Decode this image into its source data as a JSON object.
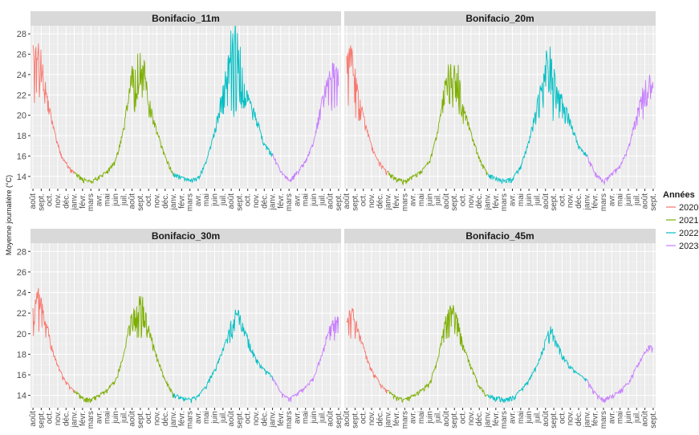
{
  "chart_data": {
    "type": "line",
    "ylabel": "Moyenne journalière (°C)",
    "ylim": [
      12.8,
      28.8
    ],
    "yticks": [
      14,
      16,
      18,
      20,
      22,
      24,
      26,
      28
    ],
    "legend": {
      "title": "Années",
      "position": "right",
      "entries": [
        "2020",
        "2021",
        "2022",
        "2023"
      ],
      "colors": [
        "#F8766D",
        "#7CAE00",
        "#00BFC4",
        "#C77CFF"
      ]
    },
    "xticks": [
      "août",
      "sept.",
      "oct.",
      "nov.",
      "déc.",
      "janv.",
      "févr.",
      "mars",
      "avr.",
      "mai",
      "juin",
      "juil.",
      "août",
      "sept.",
      "oct.",
      "nov.",
      "déc.",
      "janv.",
      "févr.",
      "mars",
      "avr.",
      "mai",
      "juin",
      "juil.",
      "août",
      "sept.",
      "oct.",
      "nov.",
      "déc.",
      "janv.",
      "févr.",
      "mars",
      "avr.",
      "mai",
      "juin",
      "juil.",
      "août",
      "sept."
    ],
    "panels": [
      {
        "title": "Bonifacio_11m",
        "series": [
          {
            "name": "2020",
            "x": [
              0,
              0.5,
              1,
              1.5,
              2,
              2.5,
              3,
              3.5,
              4,
              4.5,
              5
            ],
            "y": [
              25.3,
              25.6,
              25.2,
              22.5,
              20.5,
              18.8,
              17.2,
              16.0,
              15.3,
              14.8,
              14.4
            ]
          },
          {
            "name": "2021",
            "x": [
              5,
              6,
              7,
              8,
              9,
              10,
              11,
              11.5,
              12,
              12.5,
              13,
              13.5,
              14,
              15,
              16,
              17
            ],
            "y": [
              14.4,
              13.8,
              13.5,
              14.0,
              14.5,
              15.6,
              18.8,
              21.5,
              24.0,
              24.8,
              24.8,
              24.2,
              21.5,
              18.5,
              16.0,
              14.3
            ]
          },
          {
            "name": "2022",
            "x": [
              17,
              18,
              19,
              20,
              21,
              22,
              23,
              23.5,
              24,
              24.5,
              25,
              25.5,
              26,
              27,
              28,
              29
            ],
            "y": [
              14.3,
              13.9,
              13.6,
              13.9,
              15.5,
              18.5,
              22.5,
              24.5,
              26.5,
              27.5,
              26.0,
              22.5,
              22.0,
              20.0,
              17.2,
              16.2
            ]
          },
          {
            "name": "2023",
            "x": [
              29,
              30,
              31,
              32,
              33,
              34,
              34.5,
              35,
              35.5,
              36,
              36.5,
              37
            ],
            "y": [
              16.2,
              14.5,
              13.6,
              14.5,
              15.5,
              17.5,
              19.5,
              21.5,
              23.0,
              24.0,
              24.5,
              24.0
            ]
          }
        ]
      },
      {
        "title": "Bonifacio_20m",
        "series": [
          {
            "name": "2020",
            "x": [
              0,
              0.5,
              1,
              1.5,
              2,
              2.5,
              3,
              3.5,
              4,
              4.5,
              5
            ],
            "y": [
              24.5,
              25.0,
              24.0,
              21.5,
              20.0,
              18.5,
              17.0,
              16.0,
              15.3,
              14.8,
              14.4
            ]
          },
          {
            "name": "2021",
            "x": [
              5,
              6,
              7,
              8,
              9,
              10,
              11,
              11.5,
              12,
              12.5,
              13,
              13.5,
              14,
              15,
              16,
              17
            ],
            "y": [
              14.4,
              13.8,
              13.5,
              14.0,
              14.5,
              15.5,
              18.5,
              21.0,
              23.5,
              24.3,
              24.4,
              23.8,
              21.0,
              18.3,
              15.8,
              14.2
            ]
          },
          {
            "name": "2022",
            "x": [
              17,
              18,
              19,
              20,
              21,
              22,
              23,
              23.5,
              24,
              24.5,
              25,
              25.5,
              26,
              27,
              28,
              29
            ],
            "y": [
              14.2,
              13.9,
              13.6,
              13.8,
              15.0,
              17.5,
              21.0,
              23.0,
              24.5,
              25.5,
              24.0,
              22.0,
              21.5,
              19.5,
              17.0,
              16.1
            ]
          },
          {
            "name": "2023",
            "x": [
              29,
              30,
              31,
              32,
              33,
              34,
              34.5,
              35,
              35.5,
              36,
              36.5,
              37
            ],
            "y": [
              16.1,
              14.3,
              13.5,
              14.3,
              15.0,
              16.8,
              18.5,
              20.0,
              21.5,
              22.5,
              23.0,
              22.5
            ]
          }
        ]
      },
      {
        "title": "Bonifacio_30m",
        "series": [
          {
            "name": "2020",
            "x": [
              0,
              0.5,
              1,
              1.5,
              2,
              2.5,
              3,
              3.5,
              4,
              4.5,
              5
            ],
            "y": [
              22.0,
              23.5,
              23.0,
              21.0,
              19.8,
              18.0,
              17.0,
              16.0,
              15.3,
              14.8,
              14.4
            ]
          },
          {
            "name": "2021",
            "x": [
              5,
              6,
              7,
              8,
              9,
              10,
              11,
              11.5,
              12,
              12.5,
              13,
              13.5,
              14,
              15,
              16,
              17
            ],
            "y": [
              14.4,
              13.8,
              13.6,
              14.0,
              14.6,
              15.5,
              18.0,
              20.0,
              22.0,
              23.0,
              23.0,
              22.5,
              20.5,
              17.8,
              15.5,
              14.1
            ]
          },
          {
            "name": "2022",
            "x": [
              17,
              18,
              19,
              20,
              21,
              22,
              23,
              23.5,
              24,
              24.5,
              25,
              25.5,
              26,
              27,
              28,
              29
            ],
            "y": [
              14.1,
              13.8,
              13.6,
              13.9,
              15.0,
              16.5,
              18.5,
              19.5,
              21.0,
              22.0,
              21.5,
              20.5,
              19.5,
              17.5,
              16.5,
              15.8
            ]
          },
          {
            "name": "2023",
            "x": [
              29,
              30,
              31,
              32,
              33,
              34,
              34.5,
              35,
              35.5,
              36,
              36.5,
              37
            ],
            "y": [
              15.8,
              14.3,
              13.6,
              14.2,
              14.8,
              15.8,
              17.0,
              18.0,
              19.5,
              20.5,
              21.5,
              21.0
            ]
          }
        ]
      },
      {
        "title": "Bonifacio_45m",
        "series": [
          {
            "name": "2020",
            "x": [
              0,
              0.5,
              1,
              1.5,
              2,
              2.5,
              3,
              3.5,
              4,
              4.5,
              5
            ],
            "y": [
              21.0,
              22.0,
              21.5,
              20.0,
              18.8,
              17.5,
              16.5,
              15.8,
              15.2,
              14.7,
              14.4
            ]
          },
          {
            "name": "2021",
            "x": [
              5,
              6,
              7,
              8,
              9,
              10,
              11,
              11.5,
              12,
              12.5,
              13,
              13.5,
              14,
              15,
              16,
              17
            ],
            "y": [
              14.4,
              13.8,
              13.6,
              14.0,
              14.5,
              15.2,
              17.5,
              19.5,
              21.5,
              22.5,
              22.0,
              21.0,
              19.0,
              16.8,
              15.0,
              14.0
            ]
          },
          {
            "name": "2022",
            "x": [
              17,
              18,
              19,
              20,
              21,
              22,
              23,
              23.5,
              24,
              24.5,
              25,
              25.5,
              26,
              27,
              28,
              29
            ],
            "y": [
              14.0,
              13.8,
              13.6,
              13.8,
              14.5,
              15.5,
              17.0,
              18.0,
              19.5,
              20.5,
              20.0,
              19.0,
              18.0,
              16.8,
              16.0,
              15.5
            ]
          },
          {
            "name": "2023",
            "x": [
              29,
              30,
              31,
              32,
              33,
              34,
              34.5,
              35,
              35.5,
              36,
              36.5,
              37
            ],
            "y": [
              15.5,
              14.2,
              13.6,
              14.0,
              14.5,
              15.2,
              16.0,
              16.8,
              17.5,
              18.2,
              18.8,
              18.5
            ]
          }
        ]
      }
    ]
  }
}
